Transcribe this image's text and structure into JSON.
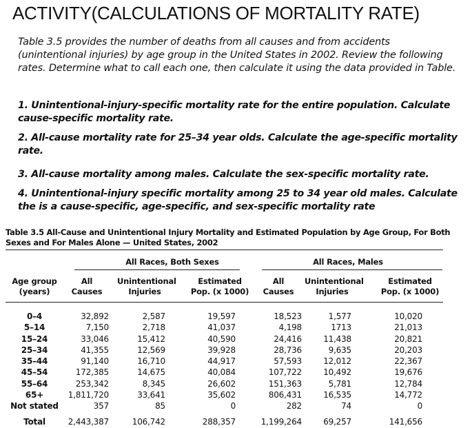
{
  "title": "ACTIVITY(CALCULATIONS OF MORTALITY RATE)",
  "intro": "Table 3.5 provides the number of deaths from all causes and from accidents (unintentional injuries) by age group in the United States in 2002. Review the following rates. Determine what to call each one, then calculate it using the data provided in Table.",
  "questions": [
    "1. Unintentional-injury-specific mortality rate for the entire population. Calculate cause-specific mortality rate.",
    "2. All-cause mortality rate for 25–34 year olds. Calculate the age-specific mortality rate.",
    "3. All-cause mortality among males.  Calculate the sex-specific mortality rate.",
    "4. Unintentional-injury specific mortality among 25 to 34 year old males. Calculate the  is a cause-specific, age-specific, and sex-specific mortality rate"
  ],
  "table": {
    "caption": "Table 3.5 All-Cause and Unintentional Injury Mortality and Estimated Population by Age Group, For Both Sexes and For Males Alone — United States, 2002",
    "group_both": "All Races, Both Sexes",
    "group_males": "All Races, Males",
    "headers": [
      "Age group (years)",
      "All Causes",
      "Unintentional Injuries",
      "Estimated Pop. (x 1000)",
      "All Causes",
      "Unintentional Injuries",
      "Estimated Pop. (x 1000)"
    ],
    "age_groups": [
      "0–4",
      "5–14",
      "15–24",
      "25–34",
      "35–44",
      "45–54",
      "55–64",
      "65+",
      "Not stated",
      "Total"
    ],
    "both_all_causes": [
      "32,892",
      "7,150",
      "33,046",
      "41,355",
      "91,140",
      "172,385",
      "253,342",
      "1,811,720",
      "357",
      "2,443,387"
    ],
    "both_unintentional": [
      "2,587",
      "2,718",
      "15,412",
      "12,569",
      "16,710",
      "14,675",
      "8,345",
      "33,641",
      "85",
      "106,742"
    ],
    "both_population": [
      "19,597",
      "41,037",
      "40,590",
      "39,928",
      "44,917",
      "40,084",
      "26,602",
      "35,602",
      "0",
      "288,357"
    ],
    "males_all_causes": [
      "18,523",
      "4,198",
      "24,416",
      "28,736",
      "57,593",
      "107,722",
      "151,363",
      "806,431",
      "282",
      "1,199,264"
    ],
    "males_unintentional": [
      "1,577",
      "1713",
      "11,438",
      "9,635",
      "12,012",
      "10,492",
      "5,781",
      "16,535",
      "74",
      "69,257"
    ],
    "males_population": [
      "10,020",
      "21,013",
      "20,821",
      "20,203",
      "22,367",
      "19,676",
      "12,784",
      "14,772",
      "0",
      "141,656"
    ]
  }
}
